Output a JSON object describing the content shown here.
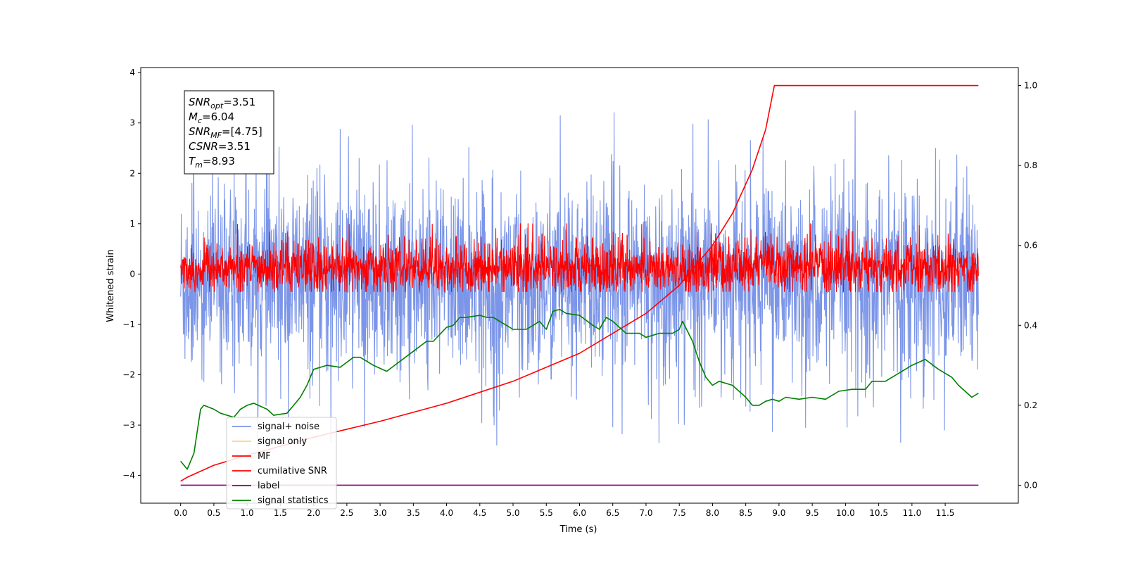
{
  "chart_data": {
    "type": "line",
    "xlabel": "Time (s)",
    "ylabel": "Whitened strain",
    "xlim": [
      -0.6,
      12.6
    ],
    "ylim": [
      -4.55,
      4.1
    ],
    "y2lim": [
      -0.045,
      1.045
    ],
    "x_ticks": [
      "0.0",
      "0.5",
      "1.0",
      "1.5",
      "2.0",
      "2.5",
      "3.0",
      "3.5",
      "4.0",
      "4.5",
      "5.0",
      "5.5",
      "6.0",
      "6.5",
      "7.0",
      "7.5",
      "8.0",
      "8.5",
      "9.0",
      "9.5",
      "10.0",
      "10.5",
      "11.0",
      "11.5"
    ],
    "y_ticks": [
      "−4",
      "−3",
      "−2",
      "−1",
      "0",
      "1",
      "2",
      "3",
      "4"
    ],
    "y2_ticks": [
      "0.0",
      "0.2",
      "0.4",
      "0.6",
      "0.8",
      "1.0"
    ],
    "annotation": [
      {
        "main": "SNR",
        "sub": "opt",
        "value": "=3.51"
      },
      {
        "main": "M",
        "sub": "c",
        "value": "=6.04"
      },
      {
        "main": "SNR",
        "sub": "MF",
        "value": "=[4.75]"
      },
      {
        "main": "CSNR",
        "sub": "",
        "value": "=3.51"
      },
      {
        "main": "T",
        "sub": "m",
        "value": "=8.93"
      }
    ],
    "legend": {
      "placement": "lower-left",
      "items": [
        {
          "label": "signal+ noise",
          "color": "#7b95e8"
        },
        {
          "label": "signal only",
          "color": "#ffd27f"
        },
        {
          "label": "MF",
          "color": "#ff0000"
        },
        {
          "label": "cumilative SNR",
          "color": "#ff0000"
        },
        {
          "label": "label",
          "color": "#800080"
        },
        {
          "label": "signal statistics",
          "color": "#008000"
        }
      ]
    },
    "series": [
      {
        "name": "signal+ noise",
        "axis": "left",
        "style": "noise",
        "x_range": [
          0.0,
          12.0
        ],
        "y_center": -0.1,
        "y_band": [
          -1.9,
          1.6
        ],
        "y_extremes": [
          -4.15,
          3.68
        ],
        "color": "#7b95e8"
      },
      {
        "name": "MF",
        "axis": "left",
        "style": "noise",
        "x_range": [
          0.0,
          12.0
        ],
        "y_center": 0.0,
        "y_band": [
          -0.35,
          0.6
        ],
        "y_extremes": [
          -0.35,
          1.0
        ],
        "color": "#ff0000"
      },
      {
        "name": "cumilative SNR",
        "axis": "right",
        "x": [
          0.0,
          0.1,
          0.5,
          1.0,
          2.0,
          3.0,
          4.0,
          5.0,
          6.0,
          7.0,
          7.5,
          8.0,
          8.3,
          8.6,
          8.8,
          8.93,
          12.0
        ],
        "y": [
          0.01,
          0.02,
          0.05,
          0.075,
          0.12,
          0.16,
          0.205,
          0.26,
          0.33,
          0.43,
          0.5,
          0.6,
          0.68,
          0.79,
          0.89,
          1.0,
          1.0
        ],
        "color": "#ff0000"
      },
      {
        "name": "label",
        "axis": "right",
        "x": [
          0.0,
          12.0
        ],
        "y": [
          0.0,
          0.0
        ],
        "color": "#800080"
      },
      {
        "name": "signal statistics",
        "axis": "right",
        "x": [
          0.0,
          0.1,
          0.2,
          0.3,
          0.35,
          0.5,
          0.6,
          0.7,
          0.8,
          0.9,
          1.0,
          1.1,
          1.3,
          1.4,
          1.6,
          1.7,
          1.8,
          1.9,
          2.0,
          2.2,
          2.4,
          2.6,
          2.7,
          2.9,
          3.1,
          3.3,
          3.5,
          3.7,
          3.8,
          4.0,
          4.1,
          4.2,
          4.3,
          4.5,
          4.6,
          4.7,
          4.8,
          5.0,
          5.2,
          5.4,
          5.5,
          5.6,
          5.7,
          5.8,
          6.0,
          6.2,
          6.3,
          6.4,
          6.5,
          6.7,
          6.9,
          7.0,
          7.2,
          7.4,
          7.5,
          7.55,
          7.7,
          7.8,
          7.9,
          8.0,
          8.1,
          8.3,
          8.5,
          8.6,
          8.7,
          8.8,
          8.9,
          9.0,
          9.1,
          9.3,
          9.5,
          9.7,
          9.9,
          10.1,
          10.3,
          10.4,
          10.6,
          10.8,
          11.0,
          11.2,
          11.4,
          11.6,
          11.7,
          11.9,
          12.0
        ],
        "y": [
          0.06,
          0.04,
          0.08,
          0.19,
          0.2,
          0.19,
          0.18,
          0.175,
          0.17,
          0.19,
          0.2,
          0.205,
          0.19,
          0.175,
          0.18,
          0.2,
          0.22,
          0.25,
          0.29,
          0.3,
          0.295,
          0.32,
          0.32,
          0.3,
          0.285,
          0.31,
          0.335,
          0.36,
          0.36,
          0.395,
          0.4,
          0.42,
          0.42,
          0.425,
          0.42,
          0.42,
          0.41,
          0.39,
          0.39,
          0.41,
          0.39,
          0.435,
          0.44,
          0.43,
          0.425,
          0.4,
          0.39,
          0.42,
          0.41,
          0.38,
          0.38,
          0.37,
          0.38,
          0.38,
          0.39,
          0.41,
          0.36,
          0.31,
          0.27,
          0.25,
          0.26,
          0.25,
          0.22,
          0.2,
          0.2,
          0.21,
          0.215,
          0.21,
          0.22,
          0.215,
          0.22,
          0.215,
          0.235,
          0.24,
          0.24,
          0.26,
          0.26,
          0.28,
          0.3,
          0.315,
          0.29,
          0.27,
          0.25,
          0.22,
          0.23
        ],
        "color": "#008000"
      }
    ]
  }
}
